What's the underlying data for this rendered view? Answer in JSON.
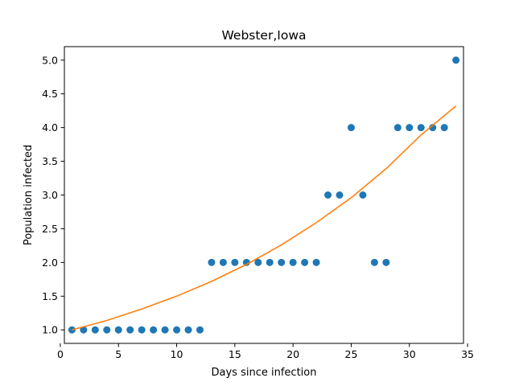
{
  "chart_data": {
    "type": "scatter",
    "title": "Webster,Iowa",
    "xlabel": "Days since infection",
    "ylabel": "Population infected",
    "xlim": [
      0.35,
      34.65
    ],
    "ylim": [
      0.8,
      5.2
    ],
    "xticks": [
      0,
      5,
      10,
      15,
      20,
      25,
      30,
      35
    ],
    "xtick_labels": [
      "0",
      "5",
      "10",
      "15",
      "20",
      "25",
      "30",
      "35"
    ],
    "yticks": [
      1.0,
      1.5,
      2.0,
      2.5,
      3.0,
      3.5,
      4.0,
      4.5,
      5.0
    ],
    "ytick_labels": [
      "1.0",
      "1.5",
      "2.0",
      "2.5",
      "3.0",
      "3.5",
      "4.0",
      "4.5",
      "5.0"
    ],
    "grid": false,
    "legend": "none",
    "series": [
      {
        "kind": "scatter",
        "color": "#1f77b4",
        "x": [
          1,
          2,
          3,
          4,
          5,
          6,
          7,
          8,
          9,
          10,
          11,
          12,
          13,
          14,
          15,
          16,
          17,
          18,
          19,
          20,
          21,
          22,
          23,
          24,
          25,
          26,
          27,
          28,
          29,
          30,
          31,
          32,
          33,
          34
        ],
        "y": [
          1,
          1,
          1,
          1,
          1,
          1,
          1,
          1,
          1,
          1,
          1,
          1,
          2,
          2,
          2,
          2,
          2,
          2,
          2,
          2,
          2,
          2,
          3,
          3,
          4,
          3,
          2,
          2,
          4,
          4,
          4,
          4,
          4,
          5
        ]
      },
      {
        "kind": "line",
        "color": "#ff7f0e",
        "x": [
          1,
          4,
          7,
          10,
          13,
          16,
          19,
          22,
          25,
          28,
          31,
          34
        ],
        "y": [
          1.0,
          1.14,
          1.31,
          1.5,
          1.72,
          1.97,
          2.26,
          2.59,
          2.96,
          3.39,
          3.89,
          4.32
        ]
      }
    ]
  }
}
